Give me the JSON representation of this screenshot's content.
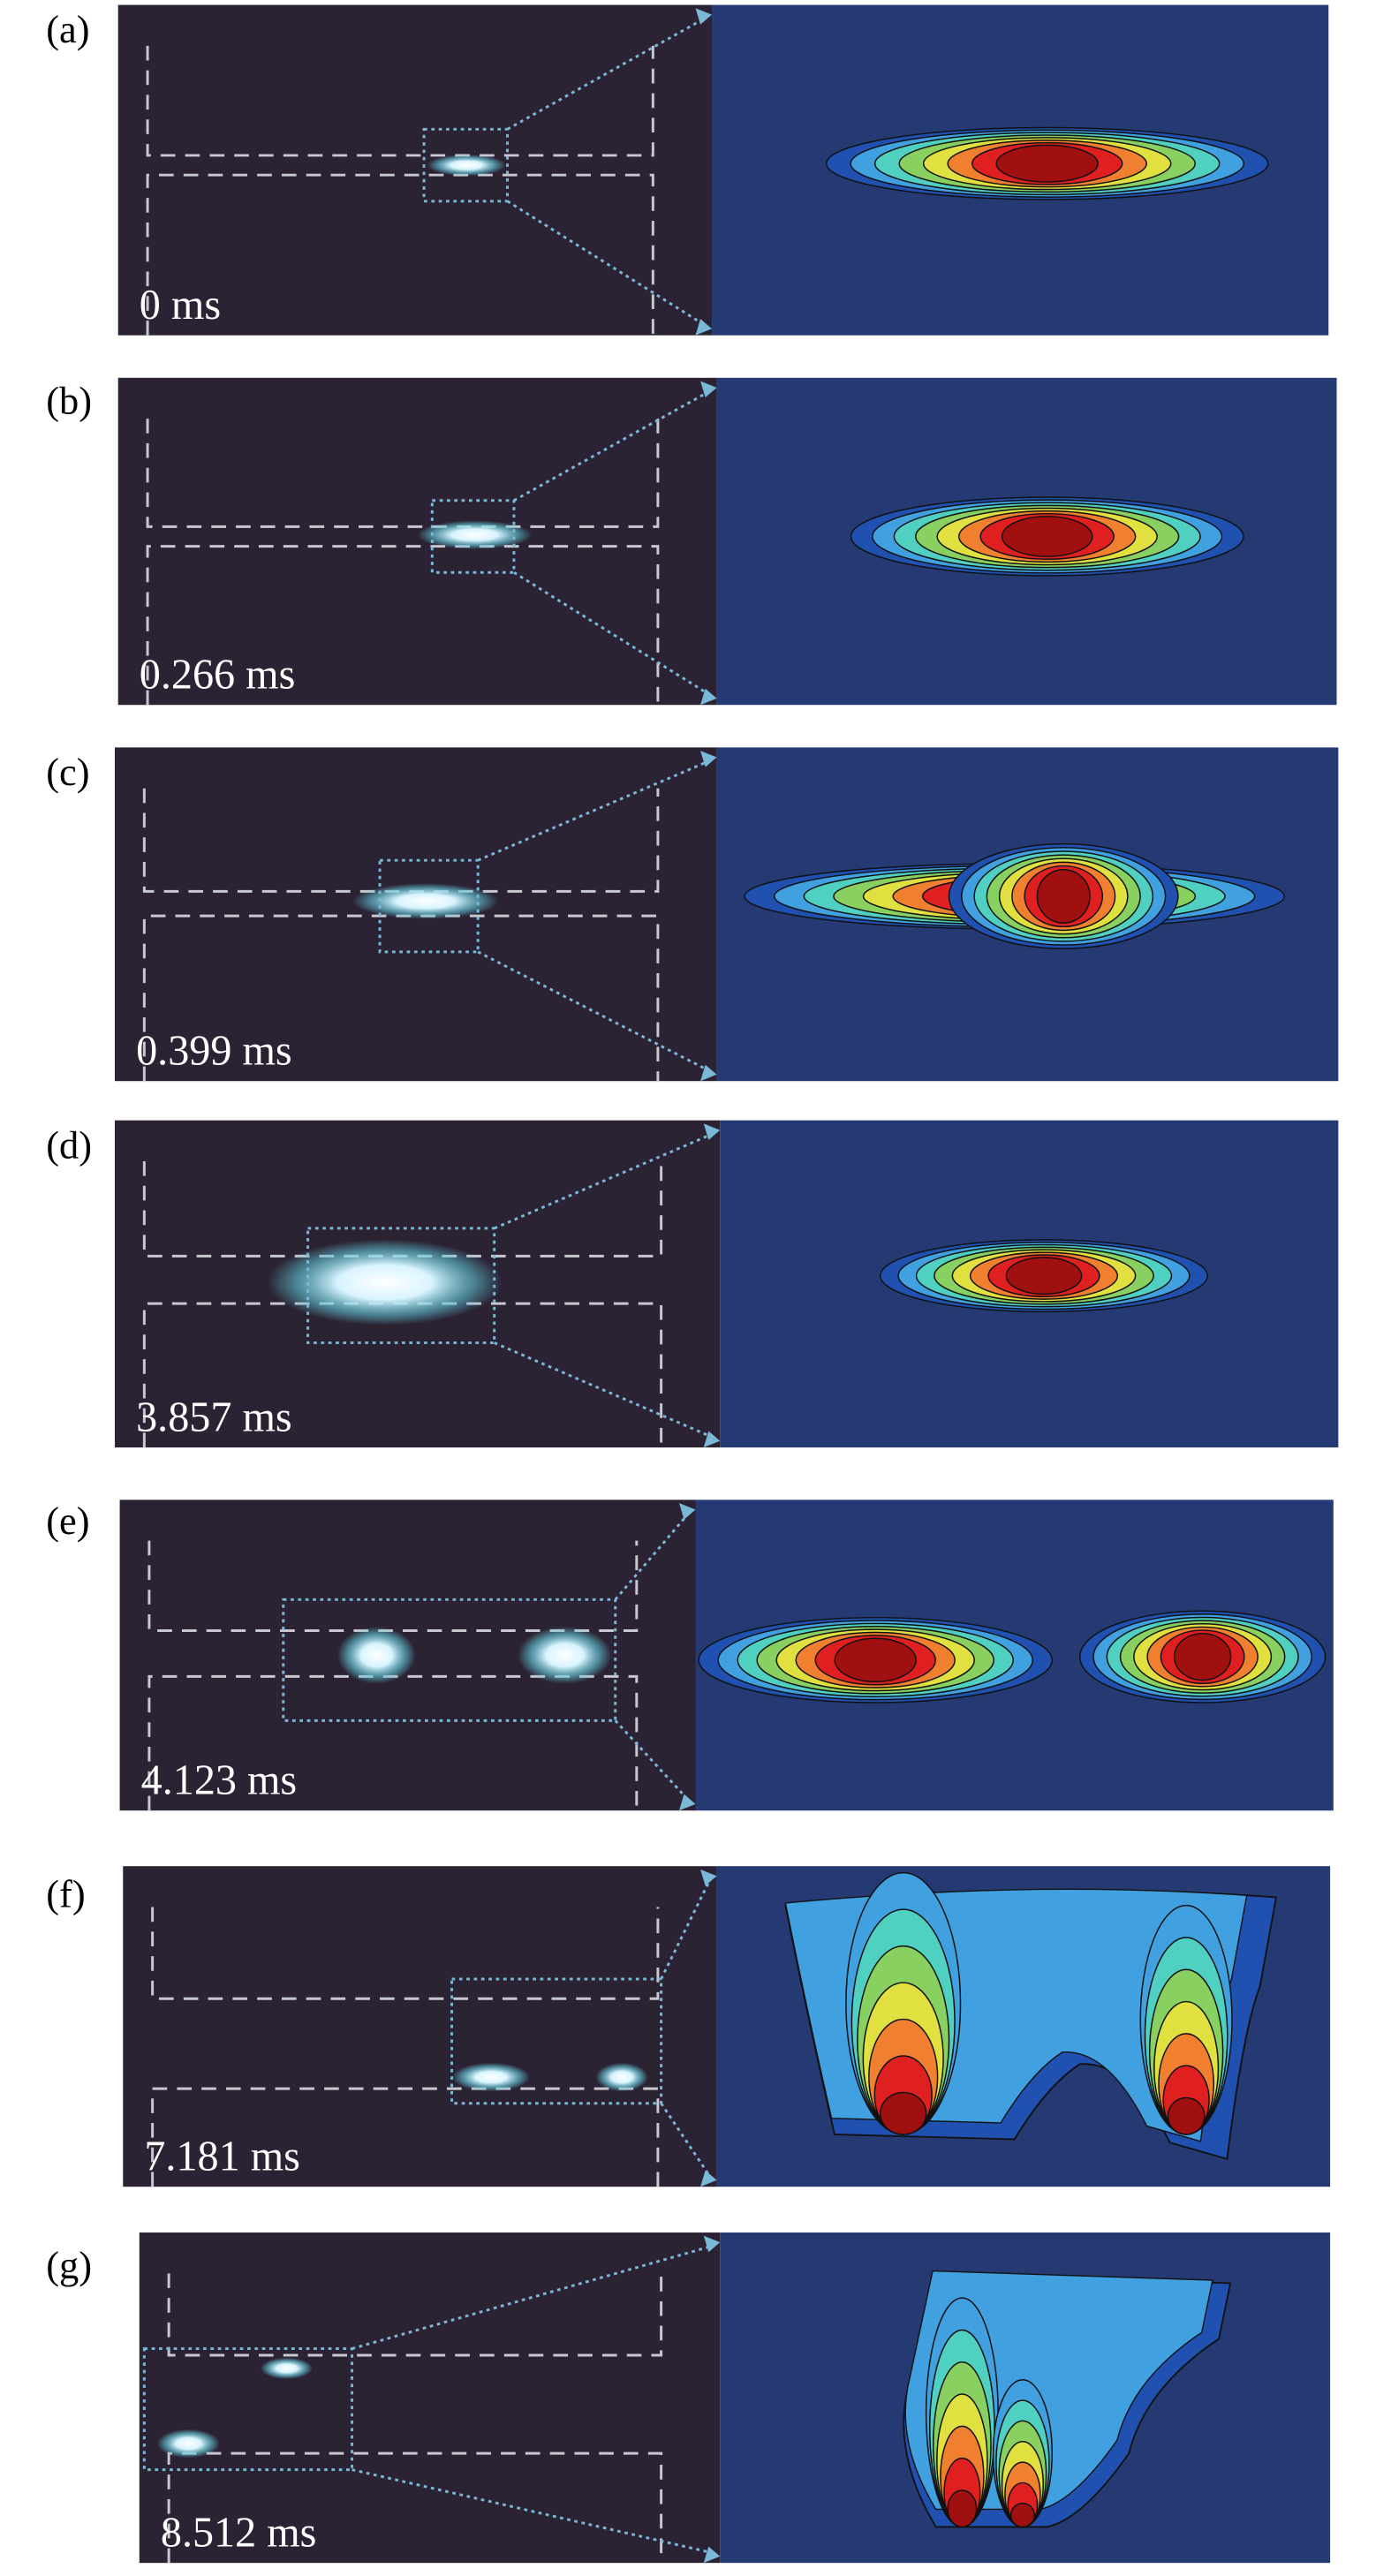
{
  "panels": [
    {
      "label": "(a)",
      "time": "0 ms"
    },
    {
      "label": "(b)",
      "time": "0.266 ms"
    },
    {
      "label": "(c)",
      "time": "0.399 ms"
    },
    {
      "label": "(d)",
      "time": "3.857 ms"
    },
    {
      "label": "(e)",
      "time": "4.123 ms"
    },
    {
      "label": "(f)",
      "time": "7.181 ms"
    },
    {
      "label": "(g)",
      "time": "8.512 ms"
    }
  ]
}
